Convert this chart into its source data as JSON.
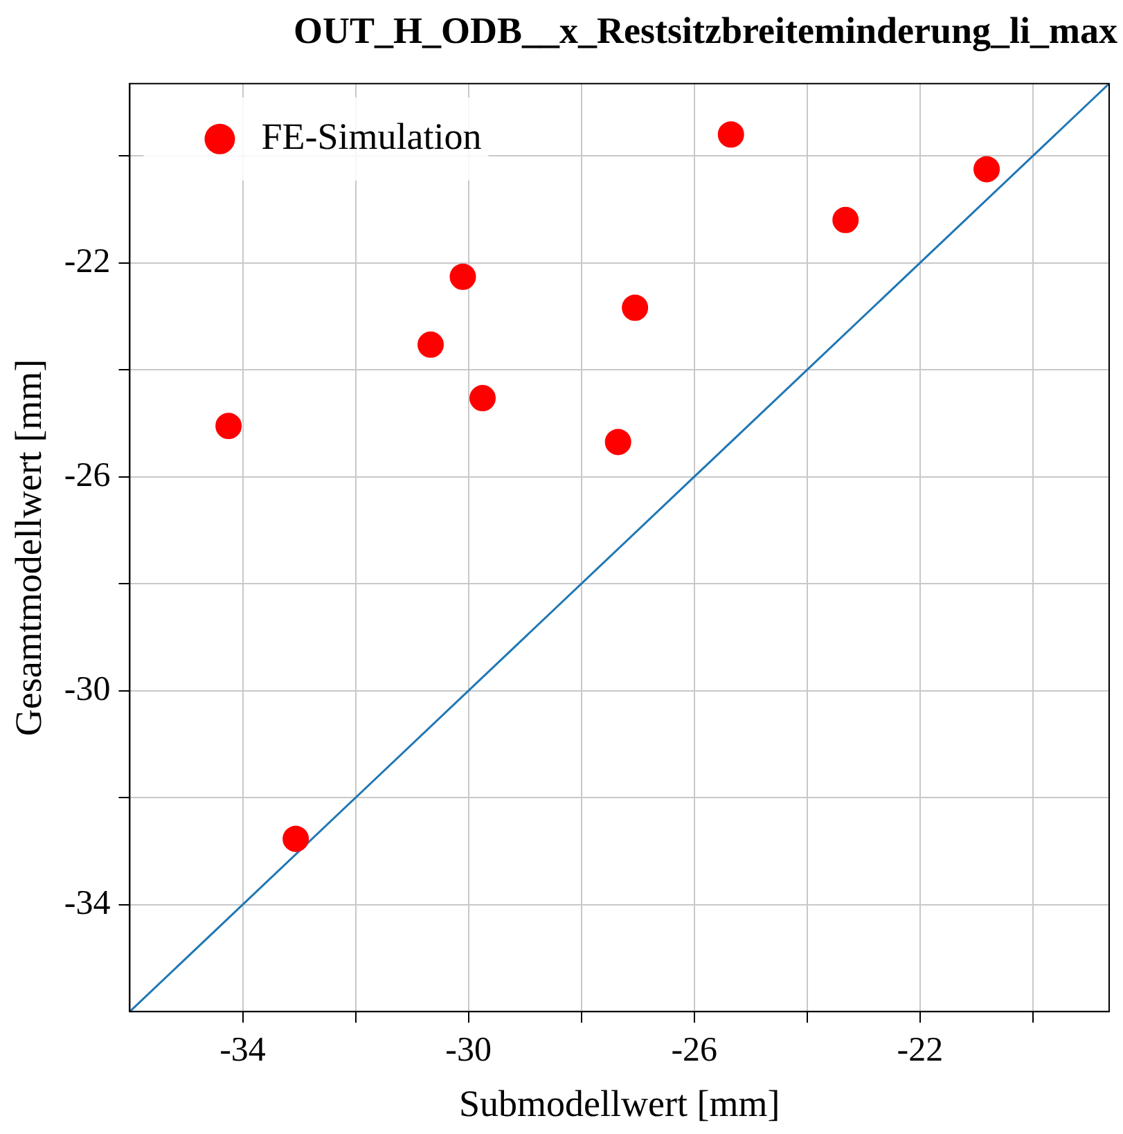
{
  "chart_data": {
    "type": "scatter",
    "title": "OUT_H_ODB__x_Restsitzbreiteminderung_li_max",
    "xlabel": "Submodellwert [mm]",
    "ylabel": "Gesamtmodellwert [mm]",
    "x": [
      -34.25,
      -33.06,
      -30.67,
      -30.1,
      -29.75,
      -27.35,
      -27.05,
      -25.35,
      -23.32,
      -20.82
    ],
    "series": [
      {
        "name": "FE-Simulation",
        "color": "#ff0000",
        "marker": "circle",
        "values": [
          -25.05,
          -32.77,
          -23.53,
          -22.26,
          -24.53,
          -25.35,
          -22.84,
          -19.6,
          -21.2,
          -20.25
        ]
      },
      {
        "type": "line",
        "color": "#1f77b4",
        "marker": "none",
        "x": [
          -36,
          -18.65
        ],
        "values": [
          -36,
          -18.65
        ]
      }
    ],
    "xlim": [
      -36,
      -18.65
    ],
    "ylim": [
      -36,
      -18.65
    ],
    "xticks": [
      {
        "value": -34,
        "label": "-34"
      },
      {
        "value": -32,
        "label": null
      },
      {
        "value": -30,
        "label": "-30"
      },
      {
        "value": -28,
        "label": null
      },
      {
        "value": -26,
        "label": "-26"
      },
      {
        "value": -24,
        "label": null
      },
      {
        "value": -22,
        "label": "-22"
      },
      {
        "value": -20,
        "label": null
      }
    ],
    "yticks": [
      {
        "value": -34,
        "label": "-34"
      },
      {
        "value": -32,
        "label": null
      },
      {
        "value": -30,
        "label": "-30"
      },
      {
        "value": -28,
        "label": null
      },
      {
        "value": -26,
        "label": "-26"
      },
      {
        "value": -24,
        "label": null
      },
      {
        "value": -22,
        "label": "-22"
      },
      {
        "value": -20,
        "label": null
      }
    ],
    "grid": true,
    "legend": "top left",
    "line_style": "solid"
  }
}
